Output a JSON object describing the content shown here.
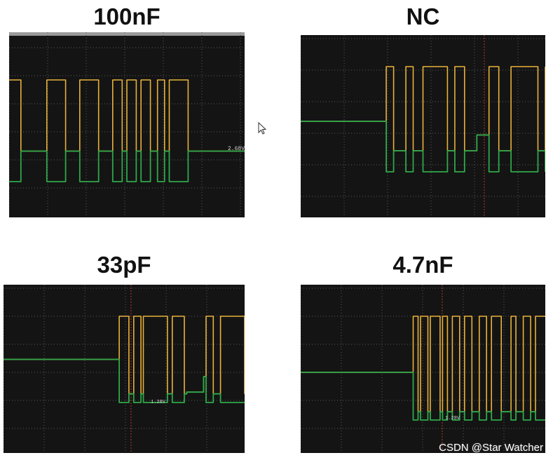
{
  "chart_data": [
    {
      "type": "line",
      "title": "100nF",
      "readout": "2.68V",
      "series": [
        {
          "color": "#e8b13a",
          "steps": [
            [
              0,
              1
            ],
            [
              0.05,
              0.3
            ],
            [
              0.16,
              1
            ],
            [
              0.24,
              0.3
            ],
            [
              0.3,
              1
            ],
            [
              0.38,
              0.3
            ],
            [
              0.44,
              1
            ],
            [
              0.48,
              0.3
            ],
            [
              0.5,
              1
            ],
            [
              0.54,
              0.3
            ],
            [
              0.56,
              1
            ],
            [
              0.6,
              0.3
            ],
            [
              0.63,
              1
            ],
            [
              0.66,
              0.3
            ],
            [
              0.68,
              1
            ],
            [
              0.76,
              0.3
            ],
            [
              1,
              0.3
            ]
          ]
        },
        {
          "color": "#2fa84a",
          "steps": [
            [
              0,
              0
            ],
            [
              0.05,
              0.3
            ],
            [
              0.16,
              0
            ],
            [
              0.24,
              0.3
            ],
            [
              0.3,
              0
            ],
            [
              0.38,
              0.3
            ],
            [
              0.44,
              0
            ],
            [
              0.48,
              0.3
            ],
            [
              0.5,
              0
            ],
            [
              0.54,
              0.3
            ],
            [
              0.56,
              0
            ],
            [
              0.6,
              0.3
            ],
            [
              0.63,
              0
            ],
            [
              0.66,
              0.3
            ],
            [
              0.68,
              0
            ],
            [
              0.76,
              0.3
            ],
            [
              1,
              0.3
            ]
          ]
        }
      ]
    },
    {
      "type": "line",
      "title": "NC",
      "readout": "",
      "series": [
        {
          "color": "#e8b13a",
          "steps": [
            [
              0,
              0.48
            ],
            [
              0.35,
              0.48
            ],
            [
              0.35,
              1
            ],
            [
              0.38,
              0.2
            ],
            [
              0.43,
              1
            ],
            [
              0.46,
              0.2
            ],
            [
              0.5,
              1
            ],
            [
              0.6,
              0.2
            ],
            [
              0.63,
              1
            ],
            [
              0.67,
              0.2
            ],
            [
              0.72,
              0.35
            ],
            [
              0.77,
              1
            ],
            [
              0.81,
              0.2
            ],
            [
              0.86,
              1
            ],
            [
              0.97,
              0.2
            ],
            [
              1,
              1
            ]
          ]
        },
        {
          "color": "#2fa84a",
          "steps": [
            [
              0,
              0.48
            ],
            [
              0.35,
              0.48
            ],
            [
              0.35,
              0
            ],
            [
              0.38,
              0.2
            ],
            [
              0.43,
              0
            ],
            [
              0.46,
              0.2
            ],
            [
              0.5,
              0
            ],
            [
              0.6,
              0.2
            ],
            [
              0.63,
              0
            ],
            [
              0.67,
              0.2
            ],
            [
              0.72,
              0.35
            ],
            [
              0.77,
              0
            ],
            [
              0.81,
              0.2
            ],
            [
              0.86,
              0
            ],
            [
              0.97,
              0.2
            ],
            [
              1,
              0
            ]
          ]
        }
      ]
    },
    {
      "type": "line",
      "title": "33pF",
      "readout": "1.28V",
      "series": [
        {
          "color": "#e8b13a",
          "steps": [
            [
              0,
              0.5
            ],
            [
              0.48,
              0.5
            ],
            [
              0.48,
              1
            ],
            [
              0.52,
              0.1
            ],
            [
              0.54,
              1
            ],
            [
              0.57,
              0.1
            ],
            [
              0.58,
              1
            ],
            [
              0.68,
              0.1
            ],
            [
              0.7,
              1
            ],
            [
              0.75,
              0.1
            ],
            [
              0.76,
              0.12
            ],
            [
              0.83,
              0.3
            ],
            [
              0.84,
              1
            ],
            [
              0.87,
              0.1
            ],
            [
              0.9,
              1
            ],
            [
              1,
              0.1
            ]
          ]
        },
        {
          "color": "#2fa84a",
          "steps": [
            [
              0,
              0.5
            ],
            [
              0.48,
              0.5
            ],
            [
              0.48,
              0
            ],
            [
              0.52,
              0.1
            ],
            [
              0.54,
              0
            ],
            [
              0.57,
              0.1
            ],
            [
              0.58,
              0
            ],
            [
              0.68,
              0.1
            ],
            [
              0.7,
              0
            ],
            [
              0.75,
              0.1
            ],
            [
              0.76,
              0.12
            ],
            [
              0.83,
              0.3
            ],
            [
              0.84,
              0
            ],
            [
              0.87,
              0.1
            ],
            [
              0.9,
              0
            ],
            [
              1,
              0
            ]
          ]
        }
      ]
    },
    {
      "type": "line",
      "title": "4.7nF",
      "readout": "1.28V",
      "series": [
        {
          "color": "#e8b13a",
          "steps": [
            [
              0,
              0.46
            ],
            [
              0.46,
              0.46
            ],
            [
              0.46,
              1
            ],
            [
              0.48,
              0.08
            ],
            [
              0.49,
              1
            ],
            [
              0.52,
              0.08
            ],
            [
              0.53,
              1
            ],
            [
              0.57,
              0.08
            ],
            [
              0.58,
              1
            ],
            [
              0.6,
              0.08
            ],
            [
              0.62,
              1
            ],
            [
              0.65,
              0.08
            ],
            [
              0.67,
              1
            ],
            [
              0.7,
              0.08
            ],
            [
              0.73,
              1
            ],
            [
              0.76,
              0.08
            ],
            [
              0.78,
              1
            ],
            [
              0.82,
              0.08
            ],
            [
              0.86,
              1
            ],
            [
              0.88,
              0.08
            ],
            [
              0.91,
              1
            ],
            [
              0.94,
              0.08
            ],
            [
              0.96,
              1
            ],
            [
              1,
              1
            ]
          ]
        },
        {
          "color": "#2fa84a",
          "steps": [
            [
              0,
              0.46
            ],
            [
              0.46,
              0.46
            ],
            [
              0.46,
              0
            ],
            [
              0.48,
              0.08
            ],
            [
              0.49,
              0
            ],
            [
              0.52,
              0.08
            ],
            [
              0.53,
              0
            ],
            [
              0.57,
              0.08
            ],
            [
              0.58,
              0
            ],
            [
              0.6,
              0.08
            ],
            [
              0.62,
              0
            ],
            [
              0.65,
              0.08
            ],
            [
              0.67,
              0
            ],
            [
              0.7,
              0.08
            ],
            [
              0.73,
              0
            ],
            [
              0.76,
              0.08
            ],
            [
              0.78,
              0
            ],
            [
              0.82,
              0.08
            ],
            [
              0.86,
              0
            ],
            [
              0.88,
              0.08
            ],
            [
              0.91,
              0
            ],
            [
              0.94,
              0.08
            ],
            [
              0.96,
              0
            ],
            [
              1,
              0
            ]
          ]
        }
      ]
    }
  ],
  "colors": {
    "grid": "#5a5a5a",
    "cursor_marker": "#b03a2e",
    "scope_bg": "#141414"
  },
  "watermark": "CSDN @Star Watcher",
  "cursor_icon": "mouse-pointer-icon"
}
